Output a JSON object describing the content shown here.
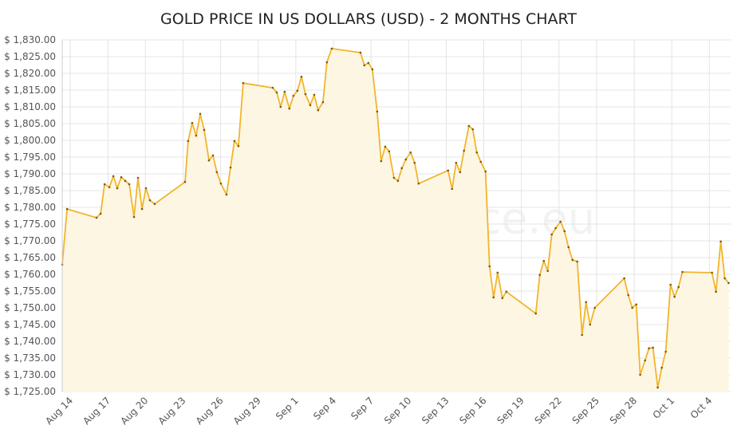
{
  "chart_data": {
    "type": "line",
    "title": "GOLD PRICE IN US DOLLARS (USD) - 2 MONTHS CHART",
    "watermark": "GoldSilverPrice.eu",
    "grid": true,
    "fill_area": true,
    "xlim": [
      -0.64,
      52.7
    ],
    "ylim": [
      1725,
      1830
    ],
    "xticks": [
      {
        "value": 0,
        "label": "Aug 14"
      },
      {
        "value": 3,
        "label": "Aug 17"
      },
      {
        "value": 6,
        "label": "Aug 20"
      },
      {
        "value": 9,
        "label": "Aug 23"
      },
      {
        "value": 12,
        "label": "Aug 26"
      },
      {
        "value": 15,
        "label": "Aug 29"
      },
      {
        "value": 18,
        "label": "Sep 1"
      },
      {
        "value": 21,
        "label": "Sep 4"
      },
      {
        "value": 24,
        "label": "Sep 7"
      },
      {
        "value": 27,
        "label": "Sep 10"
      },
      {
        "value": 30,
        "label": "Sep 13"
      },
      {
        "value": 33,
        "label": "Sep 16"
      },
      {
        "value": 36,
        "label": "Sep 19"
      },
      {
        "value": 39,
        "label": "Sep 22"
      },
      {
        "value": 42,
        "label": "Sep 25"
      },
      {
        "value": 45,
        "label": "Sep 28"
      },
      {
        "value": 48,
        "label": "Oct 1"
      },
      {
        "value": 51,
        "label": "Oct 4"
      }
    ],
    "yticks": [
      {
        "value": 1725,
        "label": "$ 1,725.00"
      },
      {
        "value": 1730,
        "label": "$ 1,730.00"
      },
      {
        "value": 1735,
        "label": "$ 1,735.00"
      },
      {
        "value": 1740,
        "label": "$ 1,740.00"
      },
      {
        "value": 1745,
        "label": "$ 1,745.00"
      },
      {
        "value": 1750,
        "label": "$ 1,750.00"
      },
      {
        "value": 1755,
        "label": "$ 1,755.00"
      },
      {
        "value": 1760,
        "label": "$ 1,760.00"
      },
      {
        "value": 1765,
        "label": "$ 1,765.00"
      },
      {
        "value": 1770,
        "label": "$ 1,770.00"
      },
      {
        "value": 1775,
        "label": "$ 1,775.00"
      },
      {
        "value": 1780,
        "label": "$ 1,780.00"
      },
      {
        "value": 1785,
        "label": "$ 1,785.00"
      },
      {
        "value": 1790,
        "label": "$ 1,790.00"
      },
      {
        "value": 1795,
        "label": "$ 1,795.00"
      },
      {
        "value": 1800,
        "label": "$ 1,800.00"
      },
      {
        "value": 1805,
        "label": "$ 1,805.00"
      },
      {
        "value": 1810,
        "label": "$ 1,810.00"
      },
      {
        "value": 1815,
        "label": "$ 1,815.00"
      },
      {
        "value": 1820,
        "label": "$ 1,820.00"
      },
      {
        "value": 1825,
        "label": "$ 1,825.00"
      },
      {
        "value": 1830,
        "label": "$ 1,830.00"
      }
    ],
    "series": [
      {
        "color": "#f2b52c",
        "marker_color": "#7a5c12",
        "x": [
          -0.64,
          -0.25,
          2.1,
          2.42,
          2.74,
          3.12,
          3.44,
          3.75,
          4.07,
          4.39,
          4.71,
          5.09,
          5.41,
          5.73,
          6.04,
          6.36,
          6.74,
          9.16,
          9.41,
          9.73,
          10.05,
          10.37,
          10.69,
          11.07,
          11.39,
          11.7,
          12.02,
          12.47,
          12.79,
          13.1,
          13.42,
          13.8,
          16.16,
          16.48,
          16.79,
          17.11,
          17.49,
          17.81,
          18.13,
          18.45,
          18.77,
          19.15,
          19.47,
          19.78,
          20.17,
          20.48,
          20.87,
          23.16,
          23.47,
          23.79,
          24.11,
          24.49,
          24.81,
          25.13,
          25.45,
          25.83,
          26.15,
          26.46,
          26.78,
          27.16,
          27.48,
          27.8,
          30.15,
          30.47,
          30.79,
          31.11,
          31.42,
          31.81,
          32.12,
          32.44,
          32.76,
          33.14,
          33.46,
          33.78,
          34.1,
          34.48,
          34.8,
          37.15,
          37.47,
          37.79,
          38.1,
          38.42,
          38.74,
          39.12,
          39.44,
          39.76,
          40.08,
          40.46,
          40.84,
          41.16,
          41.48,
          41.86,
          44.21,
          44.53,
          44.85,
          45.17,
          45.48,
          45.87,
          46.18,
          46.5,
          46.88,
          47.2,
          47.52,
          47.9,
          48.22,
          48.54,
          48.85,
          51.21,
          51.53,
          51.91,
          52.23,
          52.54
        ],
        "values": [
          1762.9,
          1779.5,
          1776.9,
          1778.1,
          1786.9,
          1786.0,
          1789.3,
          1785.7,
          1789.0,
          1787.9,
          1786.9,
          1777.1,
          1788.8,
          1779.5,
          1785.7,
          1782.1,
          1781.0,
          1787.6,
          1799.8,
          1805.2,
          1801.4,
          1807.9,
          1803.1,
          1794.0,
          1795.5,
          1790.5,
          1787.1,
          1783.8,
          1791.9,
          1799.8,
          1798.3,
          1817.1,
          1815.7,
          1814.3,
          1810.0,
          1814.5,
          1809.5,
          1813.3,
          1814.8,
          1819.0,
          1813.8,
          1810.5,
          1813.6,
          1809.0,
          1811.4,
          1823.3,
          1827.4,
          1826.2,
          1822.4,
          1823.1,
          1821.2,
          1808.6,
          1793.8,
          1798.1,
          1796.7,
          1788.8,
          1787.9,
          1791.7,
          1794.3,
          1796.4,
          1793.3,
          1787.1,
          1791.0,
          1785.5,
          1793.3,
          1790.5,
          1796.9,
          1804.3,
          1803.3,
          1796.4,
          1793.6,
          1790.7,
          1762.4,
          1753.1,
          1760.5,
          1752.9,
          1754.8,
          1748.3,
          1759.8,
          1764.0,
          1761.0,
          1771.9,
          1773.8,
          1775.7,
          1772.9,
          1768.1,
          1764.3,
          1763.8,
          1741.9,
          1751.7,
          1745.0,
          1750.0,
          1758.8,
          1753.8,
          1750.0,
          1751.0,
          1730.0,
          1734.3,
          1737.9,
          1738.1,
          1726.2,
          1732.1,
          1736.9,
          1756.9,
          1753.3,
          1756.2,
          1760.7,
          1760.5,
          1754.8,
          1769.8,
          1758.8,
          1757.4
        ]
      }
    ]
  }
}
